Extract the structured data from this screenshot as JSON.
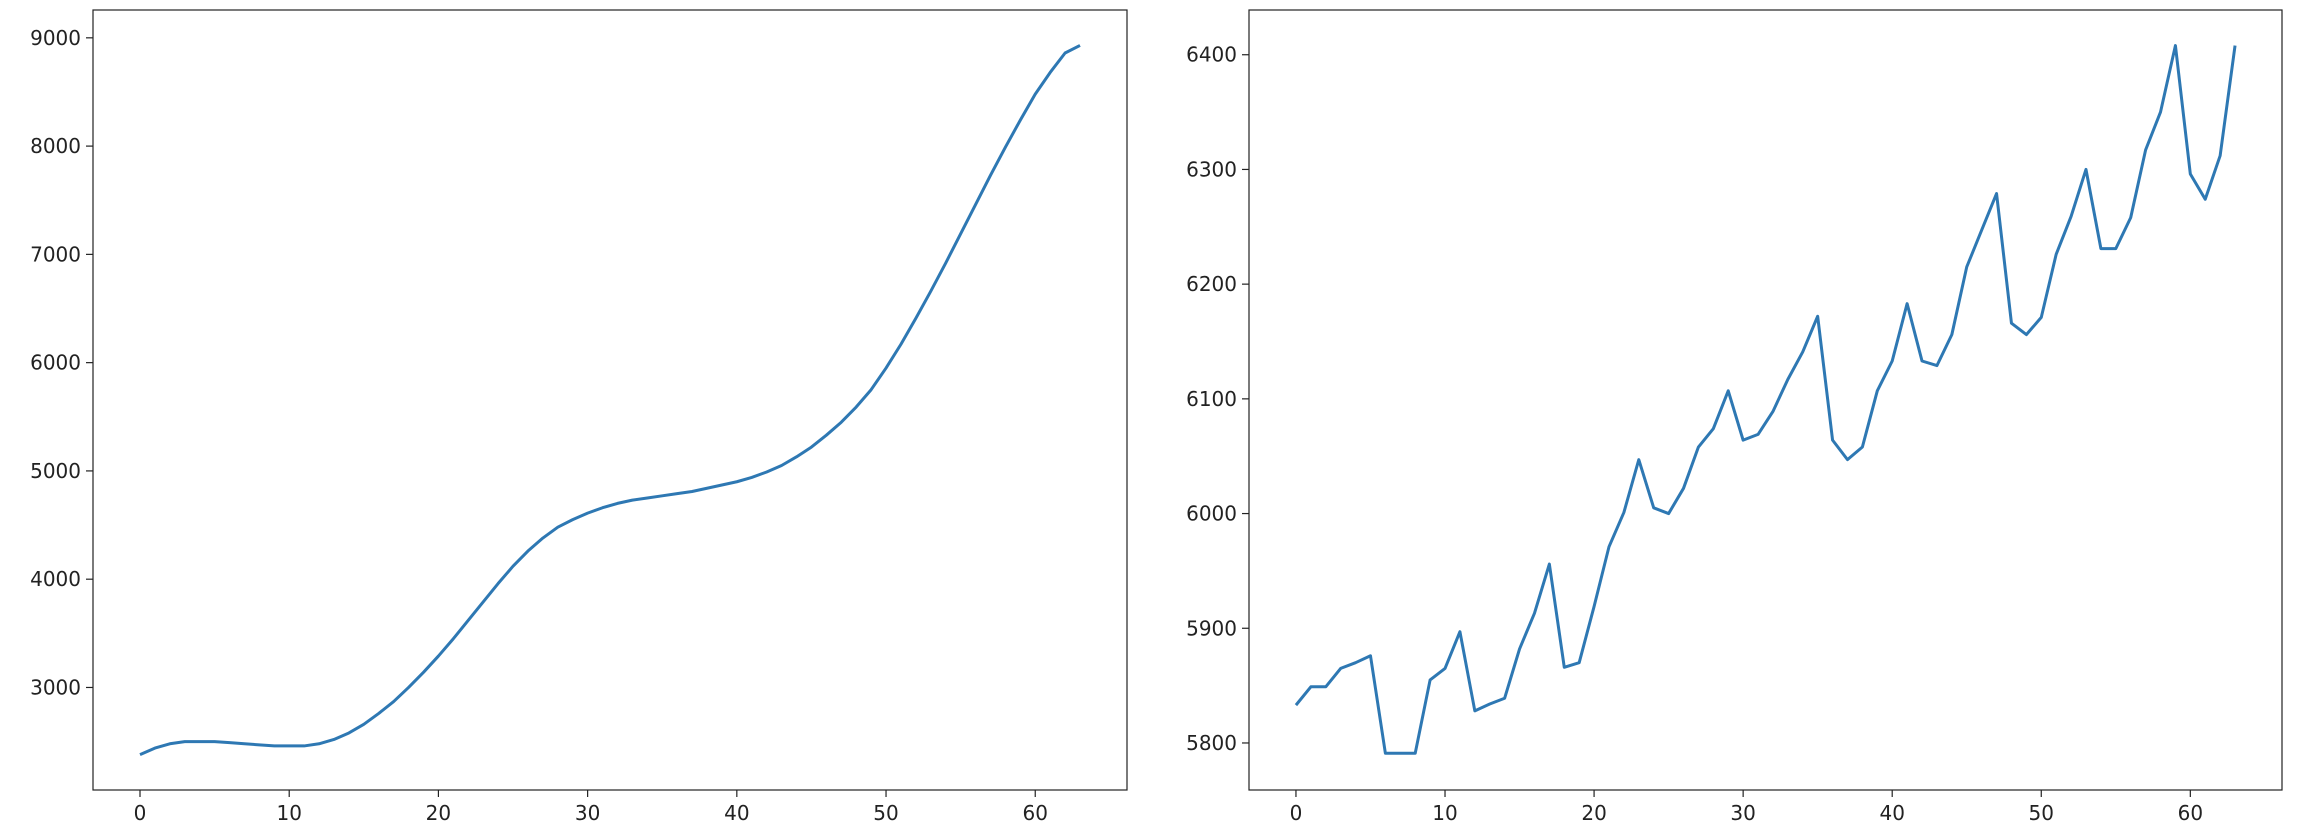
{
  "chart_data": [
    {
      "type": "line",
      "color": "#2e78b3",
      "x": [
        0,
        1,
        2,
        3,
        4,
        5,
        6,
        7,
        8,
        9,
        10,
        11,
        12,
        13,
        14,
        15,
        16,
        17,
        18,
        19,
        20,
        21,
        22,
        23,
        24,
        25,
        26,
        27,
        28,
        29,
        30,
        31,
        32,
        33,
        34,
        35,
        36,
        37,
        38,
        39,
        40,
        41,
        42,
        43,
        44,
        45,
        46,
        47,
        48,
        49,
        50,
        51,
        52,
        53,
        54,
        55,
        56,
        57,
        58,
        59,
        60,
        61,
        62,
        63
      ],
      "values": [
        2380,
        2440,
        2480,
        2500,
        2500,
        2500,
        2490,
        2480,
        2470,
        2460,
        2460,
        2460,
        2480,
        2520,
        2580,
        2660,
        2760,
        2870,
        3000,
        3140,
        3290,
        3450,
        3620,
        3790,
        3960,
        4120,
        4260,
        4380,
        4480,
        4550,
        4610,
        4660,
        4700,
        4730,
        4750,
        4770,
        4790,
        4810,
        4840,
        4870,
        4900,
        4940,
        4990,
        5050,
        5130,
        5220,
        5330,
        5450,
        5590,
        5750,
        5950,
        6170,
        6410,
        6660,
        6920,
        7190,
        7460,
        7730,
        7990,
        8240,
        8480,
        8680,
        8860,
        8930
      ],
      "xlim": [
        -3.15,
        66.15
      ],
      "xticks": [
        0,
        10,
        20,
        30,
        40,
        50,
        60
      ],
      "ylim": [
        2053,
        9257
      ],
      "yticks": [
        3000,
        4000,
        5000,
        6000,
        7000,
        8000,
        9000
      ]
    },
    {
      "type": "line",
      "color": "#2e78b3",
      "x": [
        0,
        1,
        2,
        3,
        4,
        5,
        6,
        7,
        8,
        9,
        10,
        11,
        12,
        13,
        14,
        15,
        16,
        17,
        18,
        19,
        20,
        21,
        22,
        23,
        24,
        25,
        26,
        27,
        28,
        29,
        30,
        31,
        32,
        33,
        34,
        35,
        36,
        37,
        38,
        39,
        40,
        41,
        42,
        43,
        44,
        45,
        46,
        47,
        48,
        49,
        50,
        51,
        52,
        53,
        54,
        55,
        56,
        57,
        58,
        59,
        60,
        61,
        62,
        63
      ],
      "values": [
        5833,
        5849,
        5849,
        5865,
        5870,
        5876,
        5791,
        5791,
        5791,
        5855,
        5865,
        5897,
        5828,
        5834,
        5839,
        5882,
        5913,
        5956,
        5866,
        5870,
        5919,
        5971,
        6001,
        6047,
        6005,
        6000,
        6022,
        6058,
        6074,
        6107,
        6064,
        6069,
        6089,
        6117,
        6141,
        6172,
        6064,
        6047,
        6058,
        6107,
        6133,
        6183,
        6133,
        6129,
        6156,
        6215,
        6247,
        6279,
        6166,
        6156,
        6171,
        6226,
        6259,
        6300,
        6231,
        6231,
        6258,
        6317,
        6350,
        6408,
        6296,
        6274,
        6312,
        6408
      ],
      "xlim": [
        -3.15,
        66.15
      ],
      "xticks": [
        0,
        10,
        20,
        30,
        40,
        50,
        60
      ],
      "ylim": [
        5759,
        6439
      ],
      "yticks": [
        5800,
        5900,
        6000,
        6100,
        6200,
        6300,
        6400
      ]
    }
  ]
}
